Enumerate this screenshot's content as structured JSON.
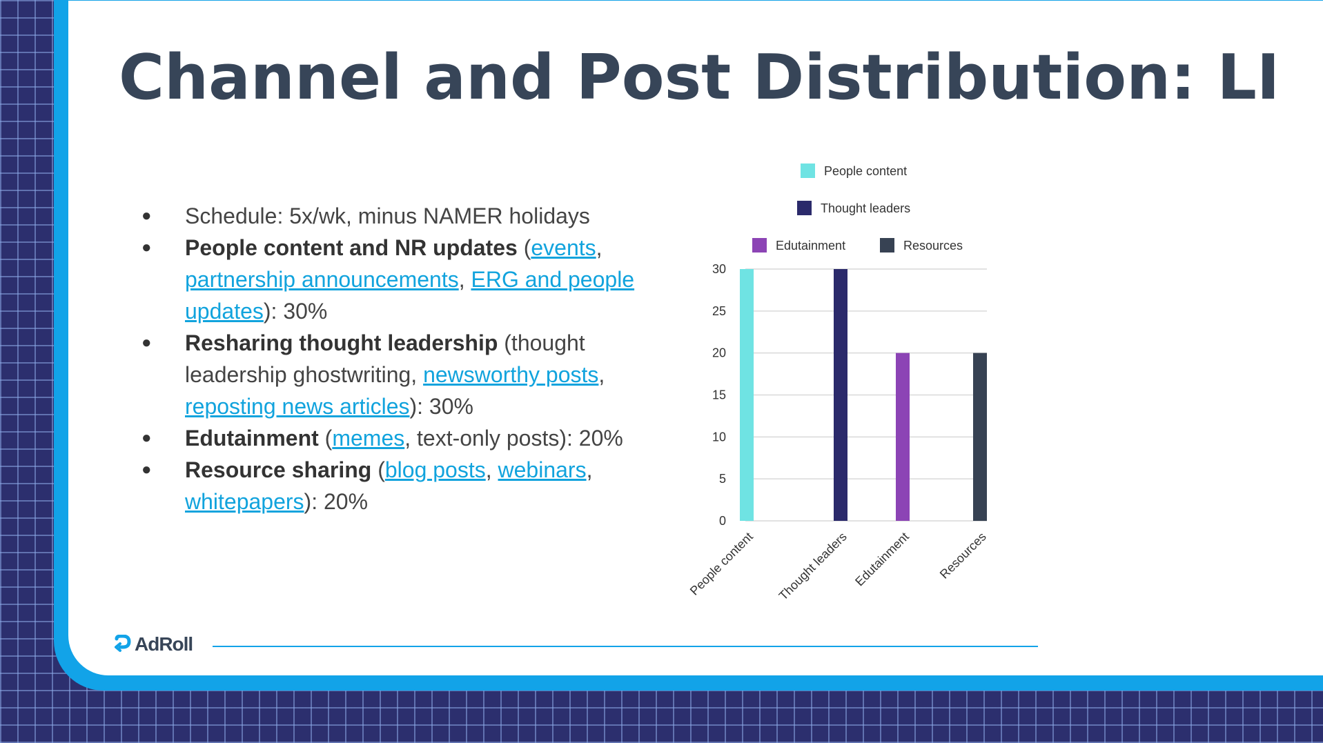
{
  "title": "Channel and Post Distribution: LI",
  "bullets": [
    {
      "parts": [
        {
          "t": "Schedule: 5x/wk, minus NAMER holidays"
        }
      ]
    },
    {
      "parts": [
        {
          "t": "People content and NR updates",
          "bold": true
        },
        {
          "t": " ("
        },
        {
          "t": "events",
          "link": true
        },
        {
          "t": ", "
        },
        {
          "t": "partnership announcements",
          "link": true
        },
        {
          "t": ", "
        },
        {
          "t": "ERG and people updates",
          "link": true
        },
        {
          "t": "):  30%"
        }
      ]
    },
    {
      "parts": [
        {
          "t": "Resharing thought leadership",
          "bold": true
        },
        {
          "t": " (thought leadership ghostwriting, "
        },
        {
          "t": "newsworthy posts",
          "link": true
        },
        {
          "t": ", "
        },
        {
          "t": "reposting news articles",
          "link": true
        },
        {
          "t": "): 30%"
        }
      ]
    },
    {
      "parts": [
        {
          "t": "Edutainment",
          "bold": true
        },
        {
          "t": " ("
        },
        {
          "t": "memes",
          "link": true
        },
        {
          "t": ", text-only posts): 20%"
        }
      ]
    },
    {
      "parts": [
        {
          "t": "Resource sharing",
          "bold": true
        },
        {
          "t": " ("
        },
        {
          "t": "blog posts",
          "link": true
        },
        {
          "t": ", "
        },
        {
          "t": "webinars",
          "link": true
        },
        {
          "t": ", "
        },
        {
          "t": "whitepapers",
          "link": true
        },
        {
          "t": "): 20%"
        }
      ]
    }
  ],
  "chart_data": {
    "type": "bar",
    "categories": [
      "People content",
      "Thought leaders",
      "Edutainment",
      "Resources"
    ],
    "values": [
      30,
      30,
      20,
      20
    ],
    "colors": [
      "#6fe3e3",
      "#2b2a6b",
      "#8c44b5",
      "#374253"
    ],
    "ylim": [
      0,
      30
    ],
    "yticks": [
      0,
      5,
      10,
      15,
      20,
      25,
      30
    ],
    "legend": [
      "People content",
      "Thought leaders",
      "Edutainment",
      "Resources"
    ],
    "legend_position": "top",
    "grid": true
  },
  "footer": {
    "logo_text": "AdRoll",
    "brand_color": "#12a3e8"
  }
}
